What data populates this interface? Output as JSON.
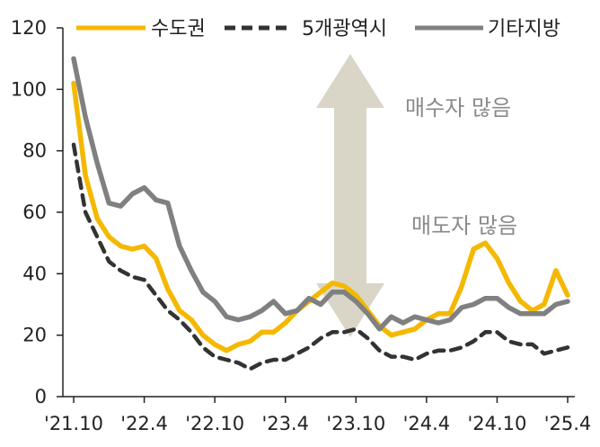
{
  "chart_data": {
    "type": "line",
    "y_ticks": [
      "0",
      "20",
      "40",
      "60",
      "80",
      "100",
      "120"
    ],
    "ylim": [
      0,
      120
    ],
    "x_ticks": [
      "'21.10",
      "'22.4",
      "'22.10",
      "'23.4",
      "'23.10",
      "'24.4",
      "'24.10",
      "'25.4"
    ],
    "x_tick_index": [
      0,
      6,
      12,
      18,
      24,
      30,
      36,
      42
    ],
    "n_points": 43,
    "grid": false,
    "legend_position": "top",
    "annotations": {
      "sell": "매도자 많음",
      "buy": "매수자 많음"
    },
    "arrow_color": "#d9d6c8",
    "series": [
      {
        "name": "수도권",
        "color": "#f5b800",
        "dash": "solid",
        "values": [
          102,
          72,
          58,
          52,
          49,
          48,
          49,
          45,
          35,
          28,
          25,
          20,
          17,
          15,
          17,
          18,
          21,
          21,
          24,
          28,
          31,
          34,
          37,
          36,
          33,
          28,
          23,
          20,
          21,
          22,
          25,
          27,
          27,
          36,
          48,
          50,
          45,
          37,
          31,
          28,
          30,
          41,
          33
        ]
      },
      {
        "name": "5개광역시",
        "color": "#333333",
        "dash": "dashed",
        "values": [
          82,
          60,
          52,
          44,
          41,
          39,
          38,
          33,
          28,
          25,
          21,
          16,
          13,
          12,
          11,
          9,
          11,
          12,
          12,
          14,
          16,
          19,
          21,
          21,
          22,
          19,
          15,
          13,
          13,
          12,
          14,
          15,
          15,
          16,
          18,
          21,
          21,
          18,
          17,
          17,
          14,
          15,
          16
        ]
      },
      {
        "name": "기타지방",
        "color": "#808080",
        "dash": "solid",
        "values": [
          110,
          91,
          76,
          63,
          62,
          66,
          68,
          64,
          63,
          49,
          41,
          34,
          31,
          26,
          25,
          26,
          28,
          31,
          27,
          28,
          32,
          30,
          34,
          34,
          31,
          27,
          22,
          26,
          24,
          26,
          25,
          24,
          25,
          29,
          30,
          32,
          32,
          29,
          27,
          27,
          27,
          30,
          31
        ]
      }
    ]
  }
}
